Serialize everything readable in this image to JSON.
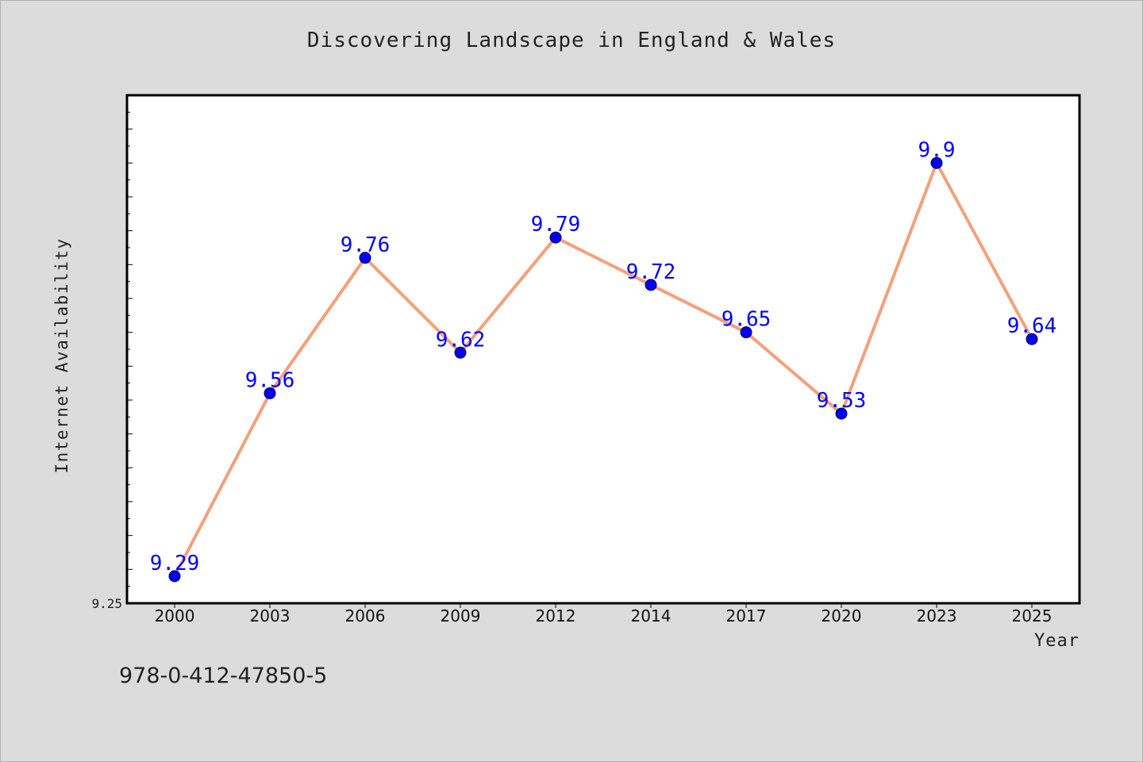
{
  "chart_data": {
    "type": "line",
    "title": "Discovering Landscape in England & Wales",
    "xlabel": "Year",
    "ylabel": "Internet Availability",
    "categories": [
      "2000",
      "2003",
      "2006",
      "2009",
      "2012",
      "2014",
      "2017",
      "2020",
      "2023",
      "2025"
    ],
    "series": [
      {
        "values": [
          9.29,
          9.56,
          9.76,
          9.62,
          9.79,
          9.72,
          9.65,
          9.53,
          9.9,
          9.64
        ]
      }
    ],
    "data_labels": [
      "9.29",
      "9.56",
      "9.76",
      "9.62",
      "9.79",
      "9.72",
      "9.65",
      "9.53",
      "9.9",
      "9.64"
    ],
    "ylim": [
      9.25,
      10.0
    ],
    "y_tick_labels": [
      "9.25"
    ],
    "grid": false,
    "legend": "none",
    "colors": {
      "line": "#f4a07a",
      "marker": "#0000ee",
      "label": "#0000ff",
      "plot_background": "#ffffff",
      "page_background": "#dcdcdc"
    }
  },
  "footer": {
    "isbn": "978-0-412-47850-5"
  }
}
